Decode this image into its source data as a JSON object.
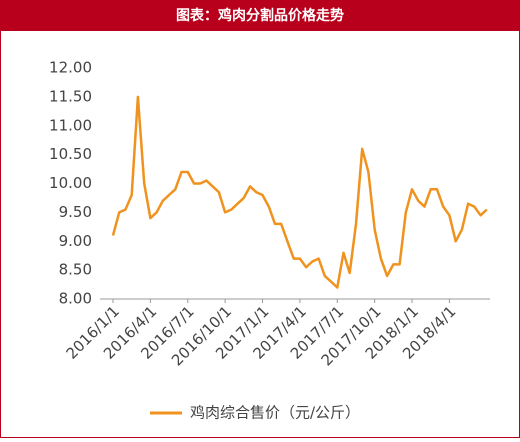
{
  "chart_data": {
    "type": "line",
    "title": "图表：鸡肉分割品价格走势",
    "categories": [
      "2016/1/1",
      null,
      null,
      null,
      null,
      null,
      "2016/4/1",
      null,
      null,
      null,
      null,
      null,
      "2016/7/1",
      null,
      null,
      null,
      null,
      null,
      "2016/10/1",
      null,
      null,
      null,
      null,
      null,
      "2017/1/1",
      null,
      null,
      null,
      null,
      null,
      "2017/4/1",
      null,
      null,
      null,
      null,
      null,
      "2017/7/1",
      null,
      null,
      null,
      null,
      null,
      "2017/10/1",
      null,
      null,
      null,
      null,
      null,
      "2018/1/1",
      null,
      null,
      null,
      null,
      null,
      "2018/4/1",
      null,
      null,
      null,
      null,
      null,
      null
    ],
    "series": [
      {
        "name": "鸡肉综合售价（元/公斤）",
        "color": "#f0921e",
        "values": [
          9.1,
          9.5,
          9.55,
          9.8,
          11.5,
          10.0,
          9.4,
          9.5,
          9.7,
          9.8,
          9.9,
          10.2,
          10.2,
          10.0,
          10.0,
          10.05,
          9.95,
          9.85,
          9.5,
          9.55,
          9.65,
          9.75,
          9.95,
          9.85,
          9.8,
          9.6,
          9.3,
          9.3,
          9.0,
          8.7,
          8.7,
          8.55,
          8.65,
          8.7,
          8.4,
          8.3,
          8.2,
          8.8,
          8.45,
          9.3,
          10.6,
          10.2,
          9.2,
          8.7,
          8.4,
          8.6,
          8.6,
          9.5,
          9.9,
          9.7,
          9.6,
          9.9,
          9.9,
          9.6,
          9.45,
          9.0,
          9.2,
          9.65,
          9.6,
          9.45,
          9.55
        ]
      }
    ],
    "ylim": [
      8,
      12
    ],
    "yticks": [
      {
        "value": 8,
        "label": "8.00"
      },
      {
        "value": 8.5,
        "label": "8.50"
      },
      {
        "value": 9,
        "label": "9.00"
      },
      {
        "value": 9.5,
        "label": "9.50"
      },
      {
        "value": 10,
        "label": "10.00"
      },
      {
        "value": 10.5,
        "label": "10.50"
      },
      {
        "value": 11,
        "label": "11.00"
      },
      {
        "value": 11.5,
        "label": "11.50"
      },
      {
        "value": 12,
        "label": "12.00"
      }
    ],
    "grid": false
  }
}
